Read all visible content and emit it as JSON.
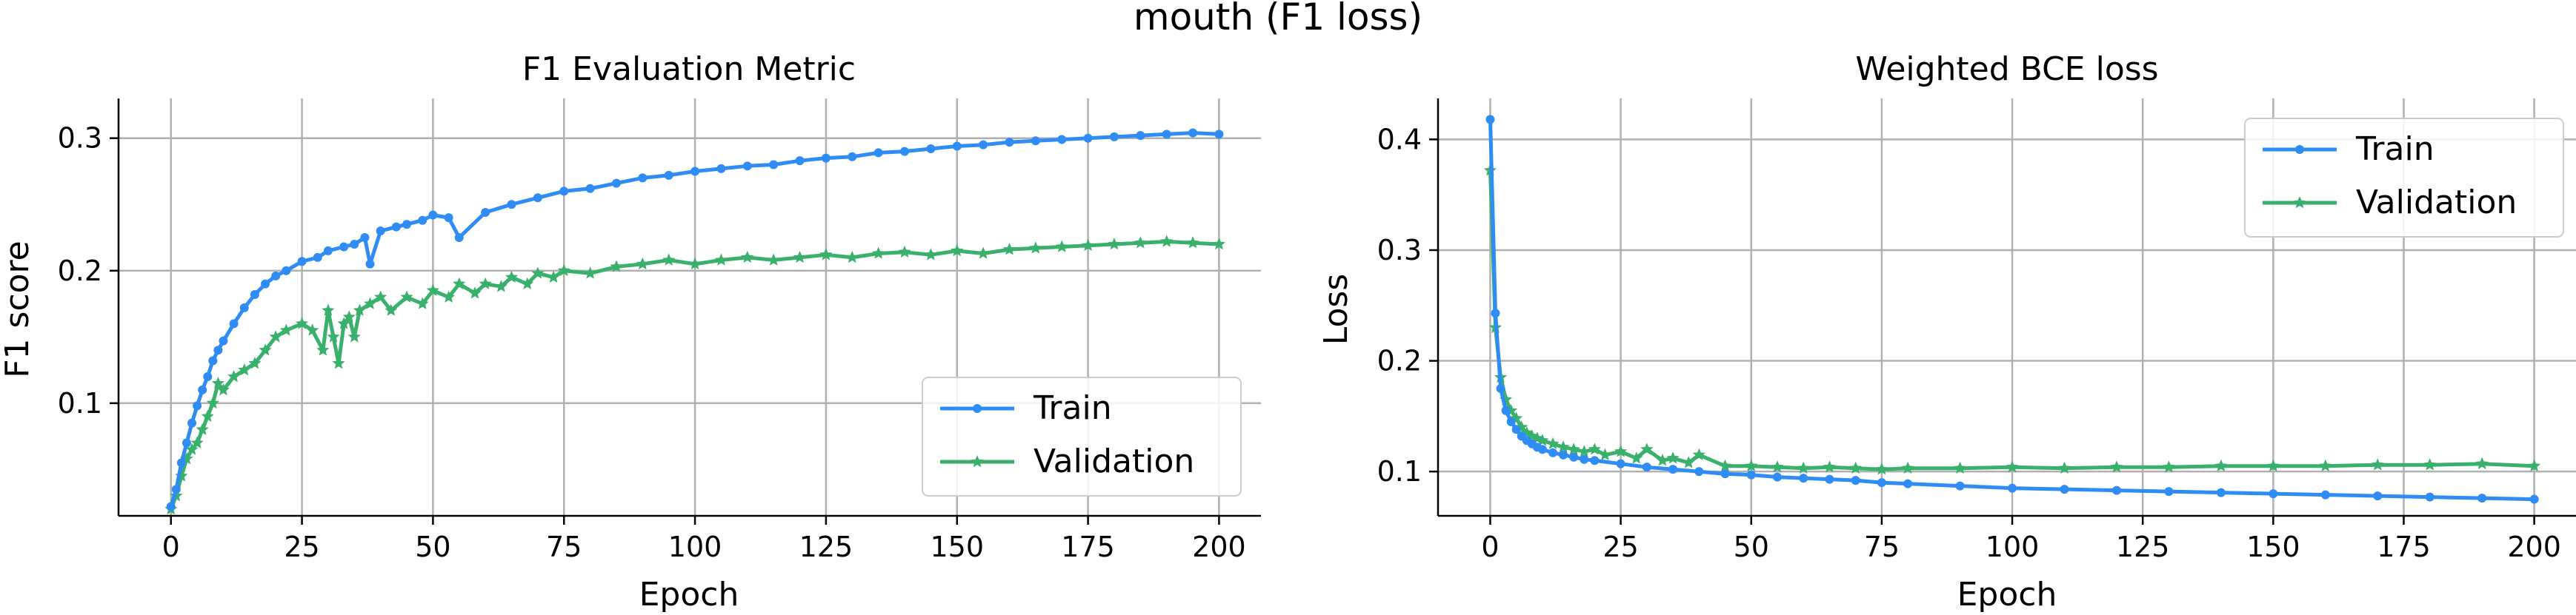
{
  "figure": {
    "suptitle": "mouth (F1 loss)"
  },
  "colors": {
    "train": "#2f8cf5",
    "validation": "#3ab06d",
    "grid": "#b0b0b0",
    "axis": "#000000"
  },
  "chart_data": [
    {
      "type": "line",
      "title": "F1 Evaluation Metric",
      "xlabel": "Epoch",
      "ylabel": "F1 score",
      "xlim": [
        -10,
        208
      ],
      "ylim": [
        0.015,
        0.33
      ],
      "xticks": [
        0,
        25,
        50,
        75,
        100,
        125,
        150,
        175,
        200
      ],
      "xtick_labels": [
        "0",
        "25",
        "50",
        "75",
        "100",
        "125",
        "150",
        "175",
        "200"
      ],
      "yticks": [
        0.1,
        0.2,
        0.3
      ],
      "ytick_labels": [
        "0.1",
        "0.2",
        "0.3"
      ],
      "grid": true,
      "legend_position": "lower-right",
      "legend": [
        "Train",
        "Validation"
      ],
      "series": [
        {
          "name": "Train",
          "marker": "circle",
          "x": [
            0,
            1,
            2,
            3,
            4,
            5,
            6,
            7,
            8,
            9,
            10,
            12,
            14,
            16,
            18,
            20,
            22,
            25,
            28,
            30,
            33,
            35,
            37,
            38,
            40,
            43,
            45,
            48,
            50,
            53,
            55,
            60,
            65,
            70,
            75,
            80,
            85,
            90,
            95,
            100,
            105,
            110,
            115,
            120,
            125,
            130,
            135,
            140,
            145,
            150,
            155,
            160,
            165,
            170,
            175,
            180,
            185,
            190,
            195,
            200
          ],
          "y": [
            0.022,
            0.035,
            0.055,
            0.07,
            0.085,
            0.098,
            0.11,
            0.12,
            0.132,
            0.14,
            0.147,
            0.16,
            0.172,
            0.182,
            0.19,
            0.196,
            0.2,
            0.207,
            0.21,
            0.215,
            0.218,
            0.22,
            0.225,
            0.205,
            0.23,
            0.233,
            0.235,
            0.238,
            0.242,
            0.24,
            0.225,
            0.244,
            0.25,
            0.255,
            0.26,
            0.262,
            0.266,
            0.27,
            0.272,
            0.275,
            0.277,
            0.279,
            0.28,
            0.283,
            0.285,
            0.286,
            0.289,
            0.29,
            0.292,
            0.294,
            0.295,
            0.297,
            0.298,
            0.299,
            0.3,
            0.301,
            0.302,
            0.303,
            0.304,
            0.303
          ]
        },
        {
          "name": "Validation",
          "marker": "star",
          "x": [
            0,
            1,
            2,
            3,
            4,
            5,
            6,
            7,
            8,
            9,
            10,
            12,
            14,
            16,
            18,
            20,
            22,
            25,
            27,
            29,
            30,
            31,
            32,
            33,
            34,
            35,
            36,
            38,
            40,
            42,
            45,
            48,
            50,
            53,
            55,
            58,
            60,
            63,
            65,
            68,
            70,
            73,
            75,
            80,
            85,
            90,
            95,
            100,
            105,
            110,
            115,
            120,
            125,
            130,
            135,
            140,
            145,
            150,
            155,
            160,
            165,
            170,
            175,
            180,
            185,
            190,
            195,
            200
          ],
          "y": [
            0.02,
            0.03,
            0.045,
            0.058,
            0.065,
            0.07,
            0.08,
            0.09,
            0.1,
            0.115,
            0.11,
            0.12,
            0.125,
            0.13,
            0.14,
            0.15,
            0.155,
            0.16,
            0.155,
            0.14,
            0.17,
            0.15,
            0.13,
            0.16,
            0.165,
            0.15,
            0.17,
            0.175,
            0.18,
            0.17,
            0.18,
            0.175,
            0.185,
            0.18,
            0.19,
            0.183,
            0.19,
            0.188,
            0.195,
            0.19,
            0.198,
            0.195,
            0.2,
            0.198,
            0.203,
            0.205,
            0.208,
            0.205,
            0.208,
            0.21,
            0.208,
            0.21,
            0.212,
            0.21,
            0.213,
            0.214,
            0.212,
            0.215,
            0.213,
            0.216,
            0.217,
            0.218,
            0.219,
            0.22,
            0.221,
            0.222,
            0.221,
            0.22
          ]
        }
      ]
    },
    {
      "type": "line",
      "title": "Weighted BCE loss",
      "xlabel": "Epoch",
      "ylabel": "Loss",
      "xlim": [
        -10,
        208
      ],
      "ylim": [
        0.06,
        0.437
      ],
      "xticks": [
        0,
        25,
        50,
        75,
        100,
        125,
        150,
        175,
        200
      ],
      "xtick_labels": [
        "0",
        "25",
        "50",
        "75",
        "100",
        "125",
        "150",
        "175",
        "200"
      ],
      "yticks": [
        0.1,
        0.2,
        0.3,
        0.4
      ],
      "ytick_labels": [
        "0.1",
        "0.2",
        "0.3",
        "0.4"
      ],
      "grid": true,
      "legend_position": "upper-right",
      "legend": [
        "Train",
        "Validation"
      ],
      "series": [
        {
          "name": "Train",
          "marker": "circle",
          "x": [
            0,
            1,
            2,
            3,
            4,
            5,
            6,
            7,
            8,
            9,
            10,
            12,
            14,
            16,
            18,
            20,
            25,
            30,
            35,
            40,
            45,
            50,
            55,
            60,
            65,
            70,
            75,
            80,
            90,
            100,
            110,
            120,
            130,
            140,
            150,
            160,
            170,
            180,
            190,
            200
          ],
          "y": [
            0.418,
            0.243,
            0.175,
            0.155,
            0.145,
            0.138,
            0.132,
            0.128,
            0.125,
            0.122,
            0.12,
            0.117,
            0.115,
            0.113,
            0.111,
            0.11,
            0.107,
            0.104,
            0.102,
            0.1,
            0.098,
            0.097,
            0.095,
            0.094,
            0.093,
            0.092,
            0.09,
            0.089,
            0.087,
            0.085,
            0.084,
            0.083,
            0.082,
            0.081,
            0.08,
            0.079,
            0.078,
            0.077,
            0.076,
            0.075
          ]
        },
        {
          "name": "Validation",
          "marker": "star",
          "x": [
            0,
            1,
            2,
            3,
            4,
            5,
            6,
            7,
            8,
            9,
            10,
            12,
            14,
            16,
            18,
            20,
            22,
            25,
            28,
            30,
            33,
            35,
            38,
            40,
            45,
            50,
            55,
            60,
            65,
            70,
            75,
            80,
            90,
            100,
            110,
            120,
            130,
            140,
            150,
            160,
            170,
            180,
            190,
            200
          ],
          "y": [
            0.372,
            0.23,
            0.185,
            0.165,
            0.155,
            0.148,
            0.14,
            0.135,
            0.132,
            0.13,
            0.128,
            0.125,
            0.122,
            0.12,
            0.118,
            0.12,
            0.115,
            0.118,
            0.112,
            0.12,
            0.11,
            0.112,
            0.108,
            0.115,
            0.105,
            0.105,
            0.104,
            0.103,
            0.104,
            0.103,
            0.102,
            0.103,
            0.103,
            0.104,
            0.103,
            0.104,
            0.104,
            0.105,
            0.105,
            0.105,
            0.106,
            0.106,
            0.107,
            0.105
          ]
        }
      ]
    }
  ]
}
